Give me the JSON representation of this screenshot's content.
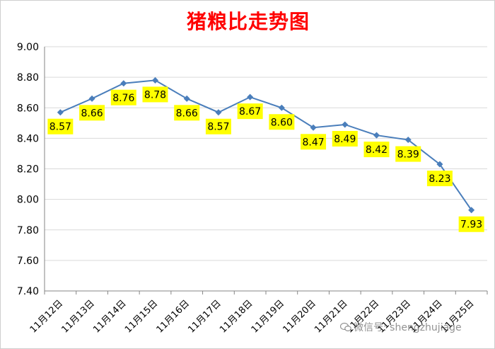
{
  "colors": {
    "title": "#ff0000",
    "line": "#4a7ebb",
    "label_bg": "#ffff00",
    "grid": "#d9d9d9"
  },
  "watermark": {
    "text": "微信号: shengzhujiage",
    "icon": "wechat-icon"
  },
  "chart_data": {
    "type": "line",
    "title": "猪粮比走势图",
    "xlabel": "",
    "ylabel": "",
    "categories": [
      "11月12日",
      "11月13日",
      "11月14日",
      "11月15日",
      "11月16日",
      "11月17日",
      "11月18日",
      "11月19日",
      "11月20日",
      "11月21日",
      "11月22日",
      "11月23日",
      "11月24日",
      "11月25日"
    ],
    "series": [
      {
        "values": [
          8.57,
          8.66,
          8.76,
          8.78,
          8.66,
          8.57,
          8.67,
          8.6,
          8.47,
          8.49,
          8.42,
          8.39,
          8.23,
          7.93
        ]
      }
    ],
    "data_labels": [
      "8.57",
      "8.66",
      "8.76",
      "8.78",
      "8.66",
      "8.57",
      "8.67",
      "8.60",
      "8.47",
      "8.49",
      "8.42",
      "8.39",
      "8.23",
      "7.93"
    ],
    "ylim": [
      7.4,
      9.0
    ],
    "yticks": [
      7.4,
      7.6,
      7.8,
      8.0,
      8.2,
      8.4,
      8.6,
      8.8,
      9.0
    ],
    "ytick_labels": [
      "7.40",
      "7.60",
      "7.80",
      "8.00",
      "8.20",
      "8.40",
      "8.60",
      "8.80",
      "9.00"
    ],
    "grid": true,
    "legend": "none"
  }
}
